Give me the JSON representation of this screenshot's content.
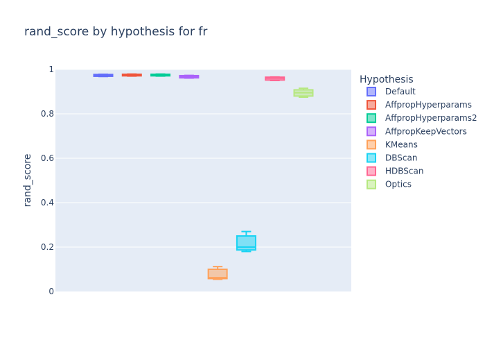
{
  "chart_data": {
    "type": "box",
    "title": "rand_score by hypothesis for fr",
    "ylabel": "rand_score",
    "xlabel": "",
    "ylim": [
      0,
      1
    ],
    "yticks": [
      {
        "value": 0,
        "label": "0"
      },
      {
        "value": 0.2,
        "label": "0.2"
      },
      {
        "value": 0.4,
        "label": "0.4"
      },
      {
        "value": 0.6,
        "label": "0.6"
      },
      {
        "value": 0.8,
        "label": "0.8"
      },
      {
        "value": 1,
        "label": "1"
      }
    ],
    "legend_title": "Hypothesis",
    "legend_position": "right",
    "series": [
      {
        "name": "Default",
        "color": "#636efa",
        "min": 0.968,
        "q1": 0.969,
        "median": 0.973,
        "q3": 0.977,
        "max": 0.978
      },
      {
        "name": "AffpropHyperparams",
        "color": "#ef553b",
        "min": 0.97,
        "q1": 0.971,
        "median": 0.975,
        "q3": 0.978,
        "max": 0.979
      },
      {
        "name": "AffpropHyperparams2",
        "color": "#00cc96",
        "min": 0.97,
        "q1": 0.971,
        "median": 0.975,
        "q3": 0.978,
        "max": 0.979
      },
      {
        "name": "AffpropKeepVectors",
        "color": "#ab63fa",
        "min": 0.961,
        "q1": 0.962,
        "median": 0.967,
        "q3": 0.972,
        "max": 0.973
      },
      {
        "name": "KMeans",
        "color": "#ffa15a",
        "min": 0.055,
        "q1": 0.058,
        "median": 0.062,
        "q3": 0.1,
        "max": 0.112
      },
      {
        "name": "DBScan",
        "color": "#19d3f3",
        "min": 0.18,
        "q1": 0.187,
        "median": 0.2,
        "q3": 0.25,
        "max": 0.27
      },
      {
        "name": "HDBScan",
        "color": "#ff6692",
        "min": 0.95,
        "q1": 0.952,
        "median": 0.96,
        "q3": 0.965,
        "max": 0.966
      },
      {
        "name": "Optics",
        "color": "#b6e880",
        "min": 0.875,
        "q1": 0.88,
        "median": 0.895,
        "q3": 0.908,
        "max": 0.915
      }
    ]
  }
}
